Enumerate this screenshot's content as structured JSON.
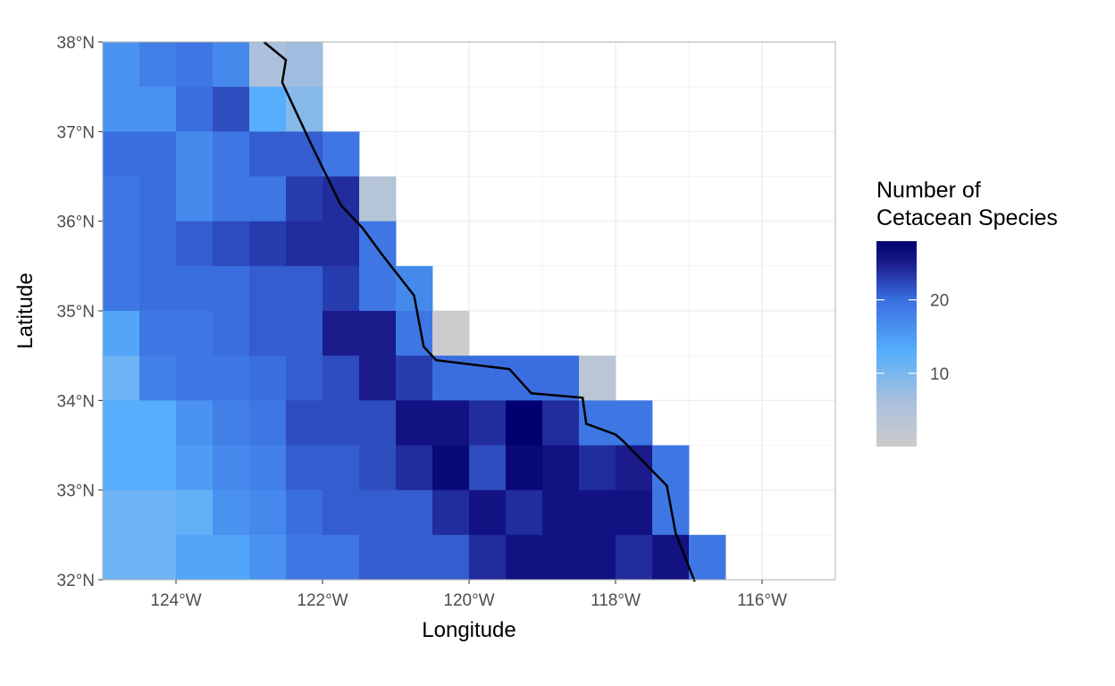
{
  "chart_data": {
    "type": "heatmap",
    "xlabel": "Longitude",
    "ylabel": "Latitude",
    "xlim": [
      -125,
      -115
    ],
    "ylim": [
      32,
      38
    ],
    "cell_size_deg": 0.5,
    "grid": true,
    "x_ticks": [
      {
        "value": -124,
        "label": "124°W"
      },
      {
        "value": -122,
        "label": "122°W"
      },
      {
        "value": -120,
        "label": "120°W"
      },
      {
        "value": -118,
        "label": "118°W"
      },
      {
        "value": -116,
        "label": "116°W"
      }
    ],
    "y_ticks": [
      {
        "value": 32,
        "label": "32°N"
      },
      {
        "value": 33,
        "label": "33°N"
      },
      {
        "value": 34,
        "label": "34°N"
      },
      {
        "value": 35,
        "label": "35°N"
      },
      {
        "value": 36,
        "label": "36°N"
      },
      {
        "value": 37,
        "label": "37°N"
      },
      {
        "value": 38,
        "label": "38°N"
      }
    ],
    "legend": {
      "title_lines": [
        "Number of",
        "Cetacean Species"
      ],
      "placement": "right",
      "min": 0,
      "max": 28,
      "ticks": [
        {
          "value": 10,
          "label": "10"
        },
        {
          "value": 20,
          "label": "20"
        }
      ],
      "color_stops": [
        {
          "value": 0,
          "color": "#cccccc"
        },
        {
          "value": 6,
          "color": "#aac0dc"
        },
        {
          "value": 13,
          "color": "#56aefc"
        },
        {
          "value": 20,
          "color": "#3a6ee0"
        },
        {
          "value": 25,
          "color": "#1b1b8c"
        },
        {
          "value": 28,
          "color": "#000070"
        }
      ]
    },
    "cell_rows": [
      {
        "lat": 37.5,
        "lon_start": -125,
        "values": [
          16,
          18,
          19,
          17,
          6,
          7
        ]
      },
      {
        "lat": 37.0,
        "lon_start": -125,
        "values": [
          16,
          16,
          20,
          22,
          13,
          9
        ]
      },
      {
        "lat": 36.5,
        "lon_start": -125,
        "values": [
          20,
          20,
          17,
          19,
          21,
          21,
          19
        ]
      },
      {
        "lat": 36.0,
        "lon_start": -125,
        "values": [
          19,
          20,
          17,
          19,
          19,
          23,
          24,
          4
        ]
      },
      {
        "lat": 35.5,
        "lon_start": -125,
        "values": [
          19,
          20,
          21,
          22,
          23,
          24,
          24,
          19
        ]
      },
      {
        "lat": 35.0,
        "lon_start": -125,
        "values": [
          19,
          20,
          20,
          20,
          21,
          21,
          23,
          19,
          17
        ]
      },
      {
        "lat": 34.5,
        "lon_start": -125,
        "values": [
          14,
          19,
          19,
          20,
          21,
          21,
          25,
          25,
          19,
          0
        ]
      },
      {
        "lat": 34.0,
        "lon_start": -125,
        "values": [
          11,
          18,
          19,
          19,
          20,
          21,
          22,
          25,
          23,
          20,
          20,
          20,
          20,
          3
        ]
      },
      {
        "lat": 33.5,
        "lon_start": -125,
        "values": [
          13,
          13,
          16,
          18,
          19,
          22,
          22,
          22,
          26,
          26,
          24,
          28,
          24,
          19,
          19
        ]
      },
      {
        "lat": 33.0,
        "lon_start": -125,
        "values": [
          13,
          13,
          15,
          17,
          18,
          21,
          21,
          22,
          24,
          27,
          22,
          27,
          26,
          24,
          25,
          19
        ]
      },
      {
        "lat": 32.5,
        "lon_start": -125,
        "values": [
          11,
          11,
          12,
          16,
          17,
          20,
          21,
          21,
          21,
          24,
          26,
          24,
          26,
          26,
          26,
          19
        ]
      },
      {
        "lat": 32.0,
        "lon_start": -125,
        "values": [
          11,
          11,
          14,
          14,
          16,
          19,
          19,
          21,
          21,
          21,
          24,
          26,
          26,
          26,
          24,
          26,
          19
        ]
      }
    ],
    "coastline": [
      [
        -122.8,
        38.0
      ],
      [
        -122.5,
        37.8
      ],
      [
        -122.55,
        37.55
      ],
      [
        -122.15,
        36.85
      ],
      [
        -121.75,
        36.18
      ],
      [
        -121.45,
        35.92
      ],
      [
        -121.18,
        35.62
      ],
      [
        -120.75,
        35.17
      ],
      [
        -120.62,
        34.6
      ],
      [
        -120.45,
        34.45
      ],
      [
        -119.45,
        34.35
      ],
      [
        -119.15,
        34.08
      ],
      [
        -118.45,
        34.03
      ],
      [
        -118.4,
        33.74
      ],
      [
        -118.0,
        33.62
      ],
      [
        -117.9,
        33.55
      ],
      [
        -117.3,
        33.05
      ],
      [
        -117.18,
        32.52
      ],
      [
        -116.92,
        31.98
      ]
    ],
    "coastline_color": "#000000"
  }
}
